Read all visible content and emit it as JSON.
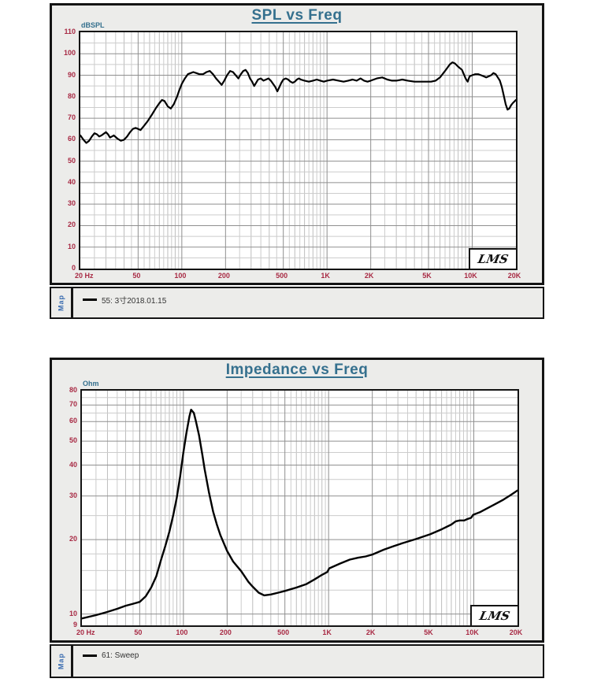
{
  "ui": {
    "map_tab_label": "Map"
  },
  "colors": {
    "title": "#35708e",
    "unit_label": "#35708e",
    "tick_label": "#a82a44",
    "curve": "#000000",
    "map_tab": "#3a6cb0",
    "block_background": "#ececea",
    "grid_major": "#8f8f8f",
    "grid_minor": "#cccccc"
  },
  "chart_data": [
    {
      "type": "line",
      "title": "SPL vs Freq",
      "xlabel": "",
      "ylabel": "dBSPL",
      "x_scale": "log",
      "y_scale": "linear",
      "xlim": [
        20,
        20000
      ],
      "ylim": [
        0,
        110
      ],
      "x_ticks": [
        20,
        50,
        100,
        200,
        500,
        1000,
        2000,
        5000,
        10000,
        20000
      ],
      "x_tick_labels": [
        "20 Hz",
        "50",
        "100",
        "200",
        "500",
        "1K",
        "2K",
        "5K",
        "10K",
        "20K"
      ],
      "y_ticks": [
        110,
        100,
        90,
        80,
        70,
        60,
        50,
        40,
        30,
        20,
        10,
        0
      ],
      "y_minor_gridlines": [
        5,
        15,
        25,
        35,
        45,
        55,
        65,
        75,
        85,
        95,
        105
      ],
      "grid": true,
      "legend": [
        "55: 3寸2018.01.15"
      ],
      "legend_position": "bottom-strip",
      "watermark": "LMS",
      "series": [
        {
          "name": "55: 3寸2018.01.15",
          "points": [
            [
              20,
              62
            ],
            [
              21,
              60
            ],
            [
              22,
              58.5
            ],
            [
              23,
              59.5
            ],
            [
              24,
              61.5
            ],
            [
              25,
              63
            ],
            [
              26,
              62.5
            ],
            [
              27,
              61.5
            ],
            [
              28,
              62
            ],
            [
              30,
              63.5
            ],
            [
              31,
              62.5
            ],
            [
              32,
              61
            ],
            [
              33,
              61.5
            ],
            [
              34,
              62
            ],
            [
              36,
              60.5
            ],
            [
              38,
              59.5
            ],
            [
              40,
              60
            ],
            [
              42,
              61.5
            ],
            [
              44,
              63.5
            ],
            [
              46,
              65
            ],
            [
              48,
              65.5
            ],
            [
              50,
              65
            ],
            [
              52,
              64.5
            ],
            [
              55,
              66.5
            ],
            [
              58,
              68.5
            ],
            [
              62,
              71.5
            ],
            [
              66,
              74.5
            ],
            [
              70,
              77
            ],
            [
              73,
              78.5
            ],
            [
              76,
              78
            ],
            [
              80,
              75.5
            ],
            [
              84,
              74.5
            ],
            [
              88,
              76.5
            ],
            [
              92,
              79.5
            ],
            [
              96,
              83
            ],
            [
              100,
              86
            ],
            [
              105,
              88.5
            ],
            [
              110,
              90.5
            ],
            [
              115,
              91
            ],
            [
              120,
              91.5
            ],
            [
              126,
              91
            ],
            [
              132,
              90.5
            ],
            [
              140,
              90.5
            ],
            [
              148,
              91.5
            ],
            [
              156,
              92
            ],
            [
              164,
              90.5
            ],
            [
              172,
              88.5
            ],
            [
              180,
              87
            ],
            [
              188,
              85.5
            ],
            [
              196,
              87.5
            ],
            [
              205,
              90
            ],
            [
              215,
              92
            ],
            [
              225,
              91.5
            ],
            [
              235,
              90
            ],
            [
              245,
              88.5
            ],
            [
              255,
              90.5
            ],
            [
              265,
              92
            ],
            [
              275,
              92.5
            ],
            [
              285,
              91
            ],
            [
              295,
              88.5
            ],
            [
              305,
              87
            ],
            [
              315,
              85
            ],
            [
              325,
              86.5
            ],
            [
              335,
              88
            ],
            [
              350,
              88.5
            ],
            [
              365,
              87.5
            ],
            [
              380,
              88
            ],
            [
              395,
              88.5
            ],
            [
              410,
              87.5
            ],
            [
              425,
              86
            ],
            [
              440,
              84.5
            ],
            [
              455,
              82.5
            ],
            [
              470,
              84.5
            ],
            [
              485,
              86.5
            ],
            [
              500,
              88
            ],
            [
              520,
              88.5
            ],
            [
              540,
              88
            ],
            [
              560,
              87
            ],
            [
              580,
              86.5
            ],
            [
              600,
              87
            ],
            [
              620,
              88
            ],
            [
              640,
              88.5
            ],
            [
              660,
              88
            ],
            [
              700,
              87.5
            ],
            [
              750,
              87
            ],
            [
              800,
              87.5
            ],
            [
              850,
              88
            ],
            [
              900,
              87.5
            ],
            [
              950,
              87
            ],
            [
              1000,
              87.5
            ],
            [
              1100,
              88
            ],
            [
              1200,
              87.5
            ],
            [
              1300,
              87
            ],
            [
              1400,
              87.5
            ],
            [
              1500,
              88
            ],
            [
              1600,
              87.5
            ],
            [
              1700,
              88.5
            ],
            [
              1800,
              87.5
            ],
            [
              1900,
              87
            ],
            [
              2000,
              87.5
            ],
            [
              2200,
              88.5
            ],
            [
              2400,
              89
            ],
            [
              2600,
              88
            ],
            [
              2800,
              87.5
            ],
            [
              3000,
              87.5
            ],
            [
              3300,
              88
            ],
            [
              3600,
              87.5
            ],
            [
              4000,
              87
            ],
            [
              4400,
              87
            ],
            [
              4800,
              87
            ],
            [
              5200,
              87
            ],
            [
              5600,
              87.5
            ],
            [
              6000,
              89
            ],
            [
              6500,
              92
            ],
            [
              7000,
              95
            ],
            [
              7300,
              96
            ],
            [
              7600,
              95.5
            ],
            [
              8000,
              94
            ],
            [
              8500,
              92.5
            ],
            [
              9000,
              88.5
            ],
            [
              9300,
              87
            ],
            [
              9600,
              89.5
            ],
            [
              10000,
              90
            ],
            [
              10500,
              90.5
            ],
            [
              11000,
              90.5
            ],
            [
              11500,
              90
            ],
            [
              12000,
              89.5
            ],
            [
              12500,
              89
            ],
            [
              13000,
              89.5
            ],
            [
              13500,
              90
            ],
            [
              14000,
              91
            ],
            [
              14500,
              90.5
            ],
            [
              15000,
              89
            ],
            [
              15500,
              87.5
            ],
            [
              16000,
              84.5
            ],
            [
              16500,
              80.5
            ],
            [
              17000,
              76.5
            ],
            [
              17500,
              74
            ],
            [
              18000,
              74.5
            ],
            [
              18500,
              76
            ],
            [
              19000,
              77
            ],
            [
              20000,
              78.5
            ]
          ]
        }
      ]
    },
    {
      "type": "line",
      "title": "Impedance vs Freq",
      "xlabel": "",
      "ylabel": "Ohm",
      "x_scale": "log",
      "y_scale": "log",
      "xlim": [
        20,
        20000
      ],
      "ylim": [
        9,
        80
      ],
      "x_ticks": [
        20,
        50,
        100,
        200,
        500,
        1000,
        2000,
        5000,
        10000,
        20000
      ],
      "x_tick_labels": [
        "20 Hz",
        "50",
        "100",
        "200",
        "500",
        "1K",
        "2K",
        "5K",
        "10K",
        "20K"
      ],
      "y_ticks": [
        80,
        70,
        60,
        50,
        40,
        30,
        20,
        10,
        9
      ],
      "y_minor_gridlines": [
        12.5,
        15,
        17.5,
        25,
        35,
        45,
        55,
        65,
        75
      ],
      "grid": true,
      "legend": [
        "61: Sweep"
      ],
      "legend_position": "bottom-strip",
      "watermark": "LMS",
      "series": [
        {
          "name": "61: Sweep",
          "points": [
            [
              20,
              9.6
            ],
            [
              25,
              9.9
            ],
            [
              30,
              10.2
            ],
            [
              35,
              10.5
            ],
            [
              40,
              10.8
            ],
            [
              45,
              11.0
            ],
            [
              50,
              11.2
            ],
            [
              55,
              11.8
            ],
            [
              60,
              12.8
            ],
            [
              65,
              14.2
            ],
            [
              70,
              16.5
            ],
            [
              75,
              18.8
            ],
            [
              80,
              21.5
            ],
            [
              85,
              25
            ],
            [
              90,
              29.5
            ],
            [
              95,
              36
            ],
            [
              100,
              45
            ],
            [
              105,
              54
            ],
            [
              110,
              63
            ],
            [
              113,
              67
            ],
            [
              118,
              65
            ],
            [
              122,
              60
            ],
            [
              128,
              53
            ],
            [
              135,
              44
            ],
            [
              140,
              38.5
            ],
            [
              150,
              31
            ],
            [
              160,
              26
            ],
            [
              170,
              23
            ],
            [
              180,
              20.8
            ],
            [
              200,
              18
            ],
            [
              220,
              16.3
            ],
            [
              250,
              14.9
            ],
            [
              280,
              13.5
            ],
            [
              300,
              12.9
            ],
            [
              330,
              12.2
            ],
            [
              360,
              11.9
            ],
            [
              400,
              12.0
            ],
            [
              450,
              12.2
            ],
            [
              500,
              12.4
            ],
            [
              600,
              12.8
            ],
            [
              700,
              13.2
            ],
            [
              800,
              13.8
            ],
            [
              900,
              14.4
            ],
            [
              980,
              14.8
            ],
            [
              1010,
              15.3
            ],
            [
              1200,
              16
            ],
            [
              1400,
              16.6
            ],
            [
              1600,
              16.9
            ],
            [
              1800,
              17.1
            ],
            [
              2000,
              17.4
            ],
            [
              2400,
              18.2
            ],
            [
              2800,
              18.8
            ],
            [
              3200,
              19.3
            ],
            [
              4000,
              20.1
            ],
            [
              5000,
              21
            ],
            [
              6000,
              22
            ],
            [
              7000,
              23
            ],
            [
              7500,
              23.7
            ],
            [
              8000,
              23.9
            ],
            [
              8600,
              23.9
            ],
            [
              9000,
              24.2
            ],
            [
              9600,
              24.5
            ],
            [
              9900,
              25.2
            ],
            [
              11000,
              25.8
            ],
            [
              12000,
              26.5
            ],
            [
              14000,
              27.8
            ],
            [
              16000,
              29
            ],
            [
              18000,
              30.3
            ],
            [
              20000,
              31.6
            ]
          ]
        }
      ]
    }
  ]
}
